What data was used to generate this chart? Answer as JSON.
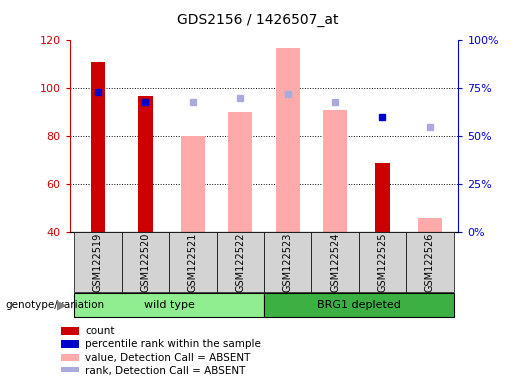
{
  "title": "GDS2156 / 1426507_at",
  "samples": [
    "GSM122519",
    "GSM122520",
    "GSM122521",
    "GSM122522",
    "GSM122523",
    "GSM122524",
    "GSM122525",
    "GSM122526"
  ],
  "groups": [
    {
      "label": "wild type",
      "indices": [
        0,
        1,
        2,
        3
      ],
      "color": "#90ee90"
    },
    {
      "label": "BRG1 depleted",
      "indices": [
        4,
        5,
        6,
        7
      ],
      "color": "#3cb043"
    }
  ],
  "ylim_left": [
    40,
    120
  ],
  "ylim_right": [
    0,
    100
  ],
  "yticks_left": [
    40,
    60,
    80,
    100,
    120
  ],
  "yticks_right": [
    0,
    25,
    50,
    75,
    100
  ],
  "yticklabels_right": [
    "0%",
    "25%",
    "50%",
    "75%",
    "100%"
  ],
  "red_bars": {
    "indices": [
      0,
      1,
      6
    ],
    "values": [
      111,
      97,
      69
    ]
  },
  "pink_bars": {
    "indices": [
      2,
      3,
      4,
      5,
      7
    ],
    "values": [
      80,
      90,
      117,
      91,
      46
    ]
  },
  "blue_squares": {
    "indices": [
      0,
      1,
      6
    ],
    "values": [
      73,
      68,
      60
    ],
    "color": "#0000cc"
  },
  "light_blue_squares": {
    "indices": [
      2,
      3,
      4,
      5,
      7
    ],
    "values": [
      68,
      70,
      72,
      68,
      55
    ],
    "color": "#aaaadd"
  },
  "red_bar_color": "#cc0000",
  "pink_bar_color": "#ffaaaa",
  "left_axis_color": "#cc0000",
  "right_axis_color": "#0000cc",
  "group_box_color": "#d3d3d3",
  "legend_items": [
    {
      "color": "#cc0000",
      "label": "count"
    },
    {
      "color": "#0000cc",
      "label": "percentile rank within the sample"
    },
    {
      "color": "#ffaaaa",
      "label": "value, Detection Call = ABSENT"
    },
    {
      "color": "#aaaadd",
      "label": "rank, Detection Call = ABSENT"
    }
  ]
}
